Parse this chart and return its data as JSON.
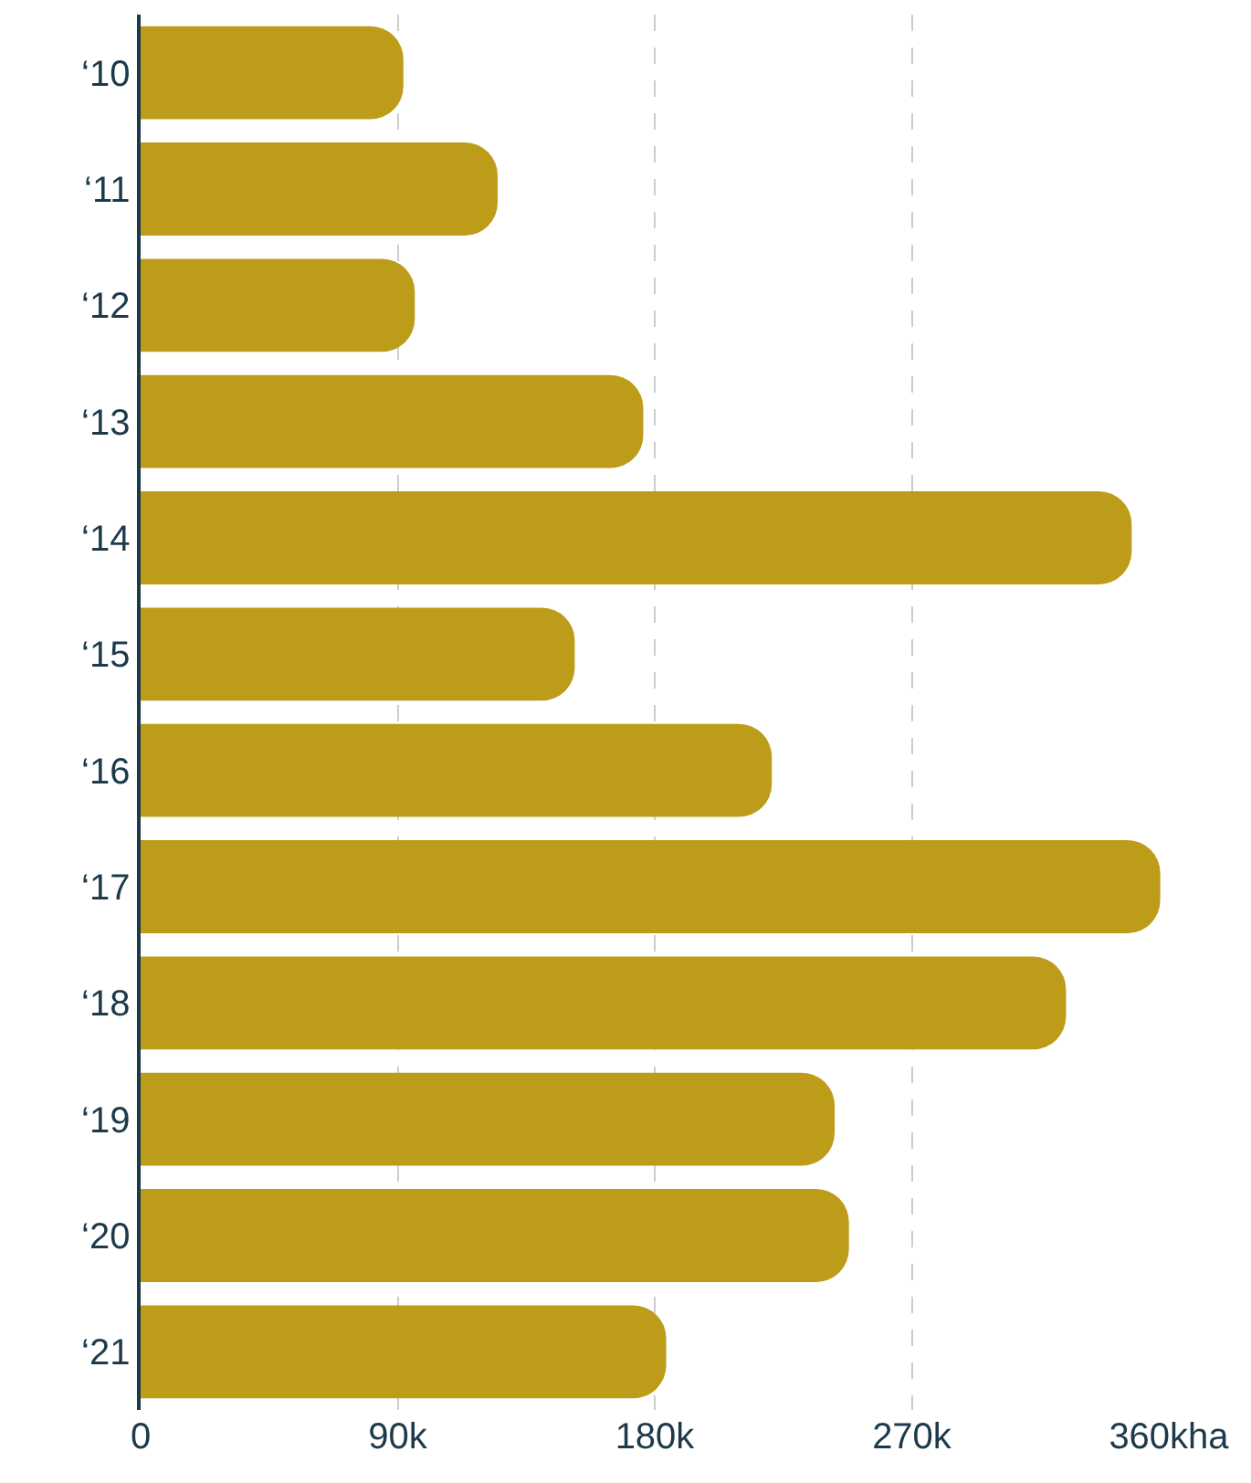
{
  "chart_data": {
    "type": "bar",
    "orientation": "horizontal",
    "categories": [
      "‘10",
      "‘11",
      "‘12",
      "‘13",
      "‘14",
      "‘15",
      "‘16",
      "‘17",
      "‘18",
      "‘19",
      "‘20",
      "‘21"
    ],
    "values": [
      92,
      125,
      96,
      176,
      347,
      152,
      221,
      357,
      324,
      243,
      248,
      184
    ],
    "color": "#bc9c18",
    "xlim": [
      0,
      360
    ],
    "xticks": [
      0,
      {
        "value": 90,
        "label": "90k"
      },
      {
        "value": 180,
        "label": "180k"
      },
      {
        "value": 270,
        "label": "270k"
      },
      {
        "value": 360,
        "label": "360kha"
      }
    ],
    "grid": "x"
  }
}
